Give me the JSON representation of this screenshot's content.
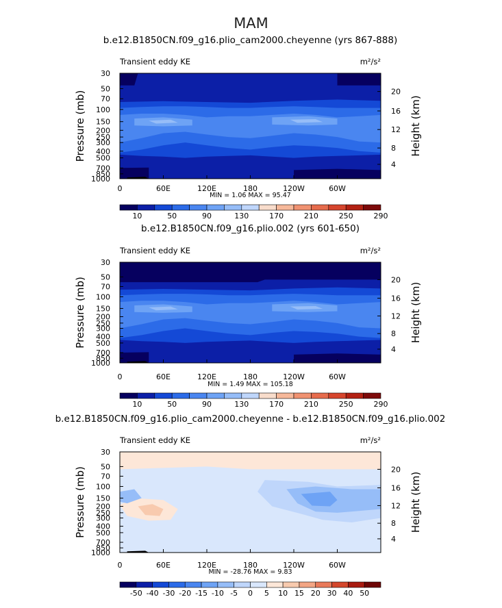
{
  "page_title": "MAM",
  "panels": [
    {
      "title": "b.e12.B1850CN.f09_g16.plio_cam2000.cheyenne (yrs 867-888)",
      "left_label": "Transient eddy KE",
      "units": "m²/s²",
      "stats": "MIN =   1.06   MAX =  95.47",
      "colorbar_labels": [
        "10",
        "50",
        "90",
        "130",
        "170",
        "210",
        "250",
        "290"
      ]
    },
    {
      "title": "b.e12.B1850CN.f09_g16.plio.002 (yrs 601-650)",
      "left_label": "Transient eddy KE",
      "units": "m²/s²",
      "stats": "MIN =   1.49   MAX = 105.18",
      "colorbar_labels": [
        "10",
        "50",
        "90",
        "130",
        "170",
        "210",
        "250",
        "290"
      ]
    },
    {
      "title": "b.e12.B1850CN.f09_g16.plio_cam2000.cheyenne - b.e12.B1850CN.f09_g16.plio.002",
      "left_label": "Transient eddy KE",
      "units": "m²/s²",
      "stats": "MIN = -28.76   MAX =   9.83",
      "colorbar_labels": [
        "-50",
        "-40",
        "-30",
        "-20",
        "-15",
        "-10",
        "-5",
        "0",
        "5",
        "10",
        "15",
        "20",
        "30",
        "40",
        "50"
      ]
    }
  ],
  "axes": {
    "ylabel_left": "Pressure (mb)",
    "ylabel_right": "Height (km)",
    "pressure_ticks": [
      "30",
      "50",
      "70",
      "100",
      "150",
      "200",
      "250",
      "300",
      "400",
      "500",
      "700",
      "850",
      "1000"
    ],
    "height_ticks": [
      "20",
      "16",
      "12",
      "8",
      "4"
    ],
    "lon_ticks": [
      "0",
      "60E",
      "120E",
      "180",
      "120W",
      "60W"
    ]
  },
  "colors": {
    "abs_scale": [
      "#06005f",
      "#0c1fa7",
      "#1449d6",
      "#2c6be8",
      "#4a86f0",
      "#6ea3f5",
      "#96bdf8",
      "#bfd6fb",
      "#f8dccb",
      "#f6b89a",
      "#f09271",
      "#e66b4c",
      "#d6452d",
      "#b32113",
      "#7d0a0a"
    ],
    "diff_scale": [
      "#06005f",
      "#0c1fa7",
      "#1449d6",
      "#2c6be8",
      "#4a86f0",
      "#6ea3f5",
      "#96bdf8",
      "#bfd6fb",
      "#d9e7fc",
      "#fde7d8",
      "#f8caae",
      "#f3a584",
      "#e97a5a",
      "#d4472c",
      "#a81b10",
      "#6e0606"
    ]
  },
  "chart_data": [
    {
      "type": "heatmap",
      "title": "b.e12.B1850CN.f09_g16.plio_cam2000.cheyenne (yrs 867-888)",
      "xlabel": "",
      "ylabel": "Pressure (mb)",
      "x_ticks": [
        "0",
        "60E",
        "120E",
        "180",
        "120W",
        "60W"
      ],
      "y_ticks": [
        "30",
        "50",
        "70",
        "100",
        "150",
        "200",
        "250",
        "300",
        "400",
        "500",
        "700",
        "850",
        "1000"
      ],
      "xlim": [
        0,
        360
      ],
      "ylim": [
        1000,
        30
      ],
      "y_scale": "log",
      "levels": [
        10,
        30,
        50,
        70,
        90,
        110,
        130,
        150,
        170,
        190,
        210,
        230,
        250,
        270,
        290
      ],
      "min": 1.06,
      "max": 95.47
    },
    {
      "type": "heatmap",
      "title": "b.e12.B1850CN.f09_g16.plio.002 (yrs 601-650)",
      "xlabel": "",
      "ylabel": "Pressure (mb)",
      "x_ticks": [
        "0",
        "60E",
        "120E",
        "180",
        "120W",
        "60W"
      ],
      "y_ticks": [
        "30",
        "50",
        "70",
        "100",
        "150",
        "200",
        "250",
        "300",
        "400",
        "500",
        "700",
        "850",
        "1000"
      ],
      "xlim": [
        0,
        360
      ],
      "ylim": [
        1000,
        30
      ],
      "y_scale": "log",
      "levels": [
        10,
        30,
        50,
        70,
        90,
        110,
        130,
        150,
        170,
        190,
        210,
        230,
        250,
        270,
        290
      ],
      "min": 1.49,
      "max": 105.18
    },
    {
      "type": "heatmap",
      "title": "b.e12.B1850CN.f09_g16.plio_cam2000.cheyenne - b.e12.B1850CN.f09_g16.plio.002",
      "xlabel": "",
      "ylabel": "Pressure (mb)",
      "x_ticks": [
        "0",
        "60E",
        "120E",
        "180",
        "120W",
        "60W"
      ],
      "y_ticks": [
        "30",
        "50",
        "70",
        "100",
        "150",
        "200",
        "250",
        "300",
        "400",
        "500",
        "700",
        "850",
        "1000"
      ],
      "xlim": [
        0,
        360
      ],
      "ylim": [
        1000,
        30
      ],
      "y_scale": "log",
      "levels": [
        -50,
        -40,
        -30,
        -20,
        -15,
        -10,
        -5,
        0,
        5,
        10,
        15,
        20,
        30,
        40,
        50
      ],
      "min": -28.76,
      "max": 9.83
    }
  ]
}
